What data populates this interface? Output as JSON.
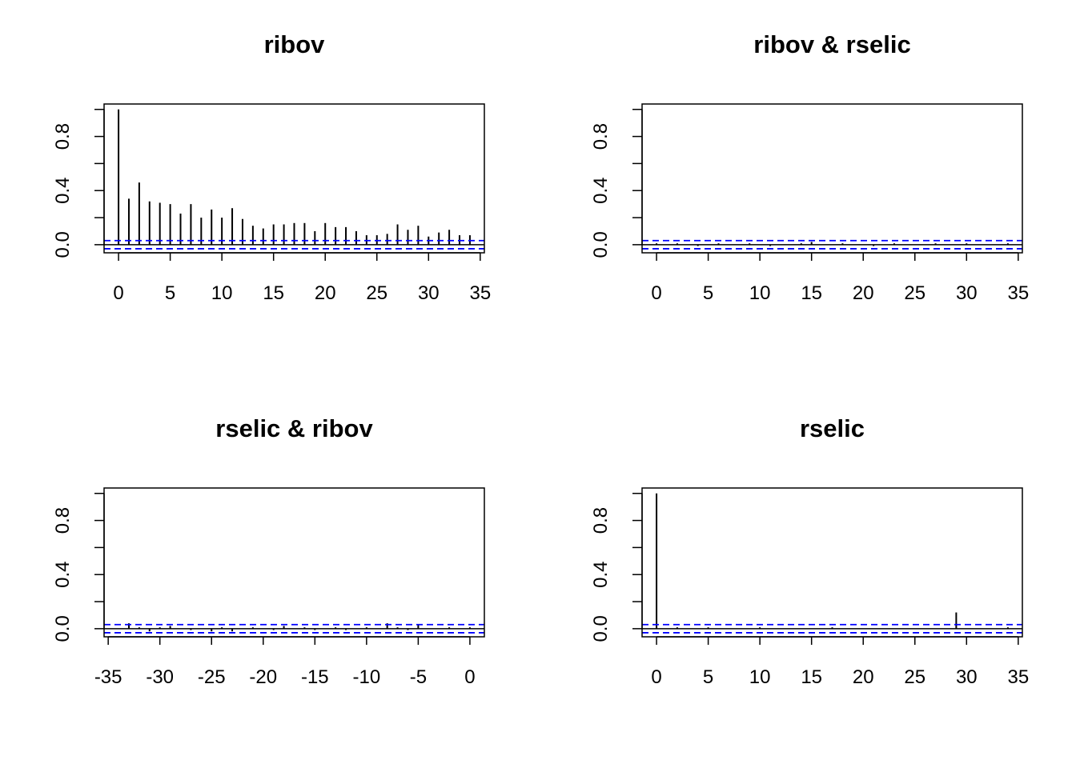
{
  "chart_data": [
    {
      "type": "bar",
      "title": "ribov",
      "xlabel": "",
      "ylabel": "",
      "xlim": [
        -1.4,
        35.4
      ],
      "ylim": [
        -0.06,
        1.04
      ],
      "x_ticks": [
        0,
        5,
        10,
        15,
        20,
        25,
        30,
        35
      ],
      "x_tick_labels": [
        "0",
        "5",
        "10",
        "15",
        "20",
        "25",
        "30",
        "35"
      ],
      "y_ticks": [
        0,
        0.2,
        0.4,
        0.6,
        0.8,
        1.0
      ],
      "y_tick_labels": [
        "0.0",
        "",
        "0.4",
        "",
        "0.8",
        ""
      ],
      "ci": 0.03,
      "ci_color": "#0000ff",
      "lags": [
        0,
        1,
        2,
        3,
        4,
        5,
        6,
        7,
        8,
        9,
        10,
        11,
        12,
        13,
        14,
        15,
        16,
        17,
        18,
        19,
        20,
        21,
        22,
        23,
        24,
        25,
        26,
        27,
        28,
        29,
        30,
        31,
        32,
        33,
        34
      ],
      "values": [
        1.0,
        0.34,
        0.46,
        0.32,
        0.31,
        0.3,
        0.23,
        0.3,
        0.2,
        0.26,
        0.2,
        0.27,
        0.19,
        0.14,
        0.12,
        0.15,
        0.15,
        0.16,
        0.16,
        0.1,
        0.16,
        0.13,
        0.13,
        0.1,
        0.07,
        0.07,
        0.08,
        0.15,
        0.11,
        0.14,
        0.06,
        0.09,
        0.11,
        0.07,
        0.07
      ]
    },
    {
      "type": "bar",
      "title": "ribov & rselic",
      "xlabel": "",
      "ylabel": "",
      "xlim": [
        -1.4,
        35.4
      ],
      "ylim": [
        -0.06,
        1.04
      ],
      "x_ticks": [
        0,
        5,
        10,
        15,
        20,
        25,
        30,
        35
      ],
      "x_tick_labels": [
        "0",
        "5",
        "10",
        "15",
        "20",
        "25",
        "30",
        "35"
      ],
      "y_ticks": [
        0,
        0.2,
        0.4,
        0.6,
        0.8,
        1.0
      ],
      "y_tick_labels": [
        "0.0",
        "",
        "0.4",
        "",
        "0.8",
        ""
      ],
      "ci": 0.03,
      "ci_color": "#0000ff",
      "lags": [
        0,
        1,
        2,
        3,
        4,
        5,
        6,
        7,
        8,
        9,
        10,
        11,
        12,
        13,
        14,
        15,
        16,
        17,
        18,
        19,
        20,
        21,
        22,
        23,
        24,
        25,
        26,
        27,
        28,
        29,
        30,
        31,
        32,
        33,
        34
      ],
      "values": [
        0.01,
        0.0,
        0.01,
        0.0,
        -0.01,
        0.0,
        0.01,
        0.0,
        0.0,
        0.01,
        0.0,
        -0.01,
        0.0,
        0.0,
        0.01,
        0.02,
        0.0,
        0.0,
        0.01,
        0.0,
        0.0,
        -0.01,
        0.0,
        0.01,
        0.0,
        0.0,
        0.0,
        0.01,
        0.0,
        0.0,
        0.01,
        0.0,
        0.0,
        0.0,
        0.01
      ]
    },
    {
      "type": "bar",
      "title": "rselic & ribov",
      "xlabel": "",
      "ylabel": "",
      "xlim": [
        -35.4,
        1.4
      ],
      "ylim": [
        -0.06,
        1.04
      ],
      "x_ticks": [
        -35,
        -30,
        -25,
        -20,
        -15,
        -10,
        -5,
        0
      ],
      "x_tick_labels": [
        "-35",
        "-30",
        "-25",
        "-20",
        "-15",
        "-10",
        "-5",
        "0"
      ],
      "y_ticks": [
        0,
        0.2,
        0.4,
        0.6,
        0.8,
        1.0
      ],
      "y_tick_labels": [
        "0.0",
        "",
        "0.4",
        "",
        "0.8",
        ""
      ],
      "ci": 0.03,
      "ci_color": "#0000ff",
      "lags": [
        -34,
        -33,
        -32,
        -31,
        -30,
        -29,
        -28,
        -27,
        -26,
        -25,
        -24,
        -23,
        -22,
        -21,
        -20,
        -19,
        -18,
        -17,
        -16,
        -15,
        -14,
        -13,
        -12,
        -11,
        -10,
        -9,
        -8,
        -7,
        -6,
        -5,
        -4,
        -3,
        -2,
        -1,
        0
      ],
      "values": [
        0.0,
        0.04,
        0.01,
        -0.02,
        0.01,
        0.02,
        0.0,
        -0.01,
        0.0,
        -0.02,
        0.01,
        -0.02,
        0.0,
        0.01,
        0.0,
        -0.01,
        0.02,
        0.0,
        0.01,
        -0.01,
        0.0,
        0.01,
        -0.01,
        0.0,
        0.01,
        0.0,
        0.04,
        0.01,
        -0.01,
        0.03,
        0.0,
        0.0,
        0.01,
        0.0,
        0.01
      ]
    },
    {
      "type": "bar",
      "title": "rselic",
      "xlabel": "",
      "ylabel": "",
      "xlim": [
        -1.4,
        35.4
      ],
      "ylim": [
        -0.06,
        1.04
      ],
      "x_ticks": [
        0,
        5,
        10,
        15,
        20,
        25,
        30,
        35
      ],
      "x_tick_labels": [
        "0",
        "5",
        "10",
        "15",
        "20",
        "25",
        "30",
        "35"
      ],
      "y_ticks": [
        0,
        0.2,
        0.4,
        0.6,
        0.8,
        1.0
      ],
      "y_tick_labels": [
        "0.0",
        "",
        "0.4",
        "",
        "0.8",
        ""
      ],
      "ci": 0.03,
      "ci_color": "#0000ff",
      "lags": [
        0,
        1,
        2,
        3,
        4,
        5,
        6,
        7,
        8,
        9,
        10,
        11,
        12,
        13,
        14,
        15,
        16,
        17,
        18,
        19,
        20,
        21,
        22,
        23,
        24,
        25,
        26,
        27,
        28,
        29,
        30,
        31,
        32,
        33,
        34
      ],
      "values": [
        1.0,
        0.0,
        0.01,
        0.0,
        0.0,
        0.01,
        0.0,
        0.0,
        0.0,
        0.0,
        0.01,
        0.0,
        0.0,
        0.0,
        0.0,
        0.0,
        0.0,
        0.01,
        0.0,
        0.0,
        0.0,
        0.0,
        0.0,
        0.0,
        0.0,
        0.0,
        0.0,
        0.0,
        0.0,
        0.12,
        0.0,
        0.0,
        0.0,
        0.0,
        0.01
      ]
    }
  ]
}
